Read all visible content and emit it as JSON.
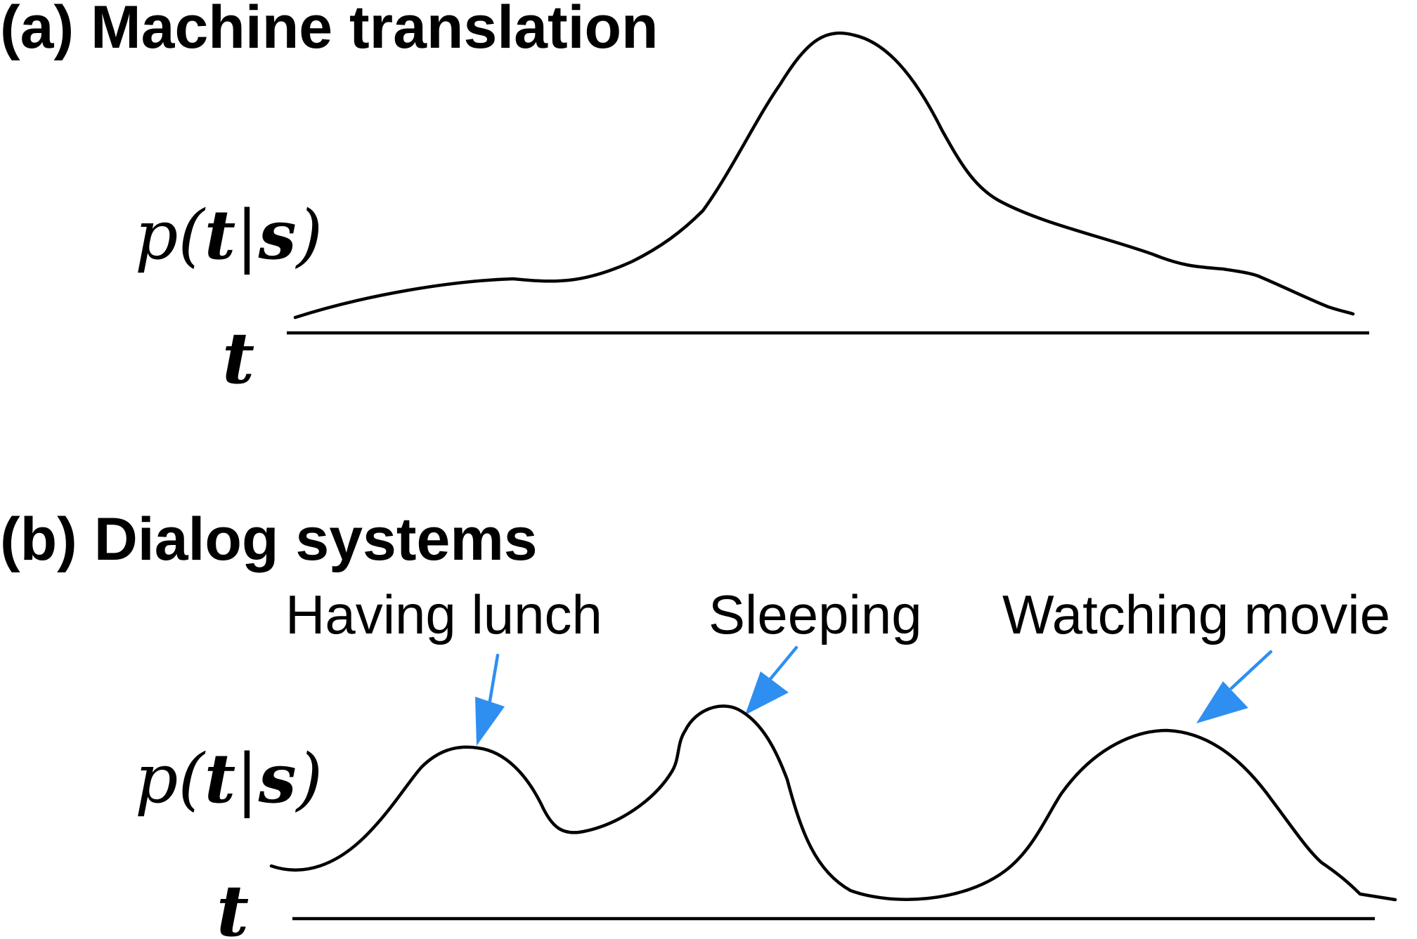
{
  "panels": [
    {
      "title": "(a) Machine translation",
      "y_label": {
        "prefix": "p(",
        "t": "t",
        "bar": "|",
        "s": "s",
        "suffix": ")"
      },
      "x_label": "t",
      "modes": []
    },
    {
      "title": "(b) Dialog systems",
      "y_label": {
        "prefix": "p(",
        "t": "t",
        "bar": "|",
        "s": "s",
        "suffix": ")"
      },
      "x_label": "t",
      "modes": [
        {
          "label": "Having lunch"
        },
        {
          "label": "Sleeping"
        },
        {
          "label": "Watching movie"
        }
      ]
    }
  ],
  "colors": {
    "curve": "#000000",
    "arrow": "#2e8ff0"
  }
}
